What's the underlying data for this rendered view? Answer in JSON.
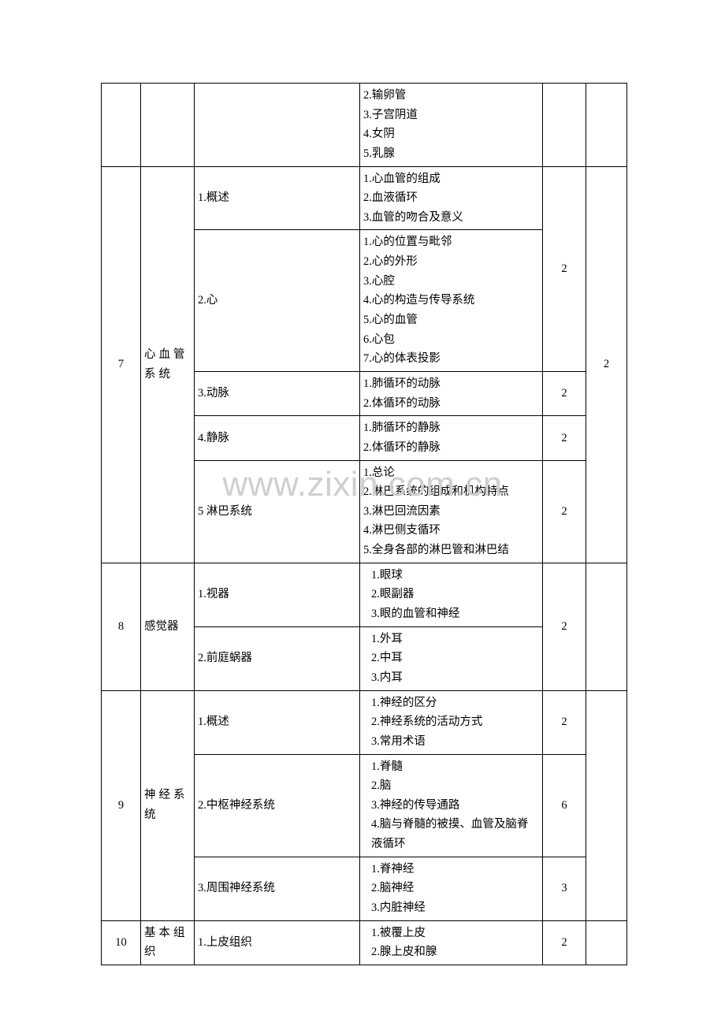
{
  "watermark": "www.zixin.com.cn",
  "rows": {
    "r1_items": "2.输卵管\n3.子宫阴道\n4.女阴\n5.乳腺",
    "ch7_num": "7",
    "ch7_title": "心血管系统",
    "ch7_s1": "1.概述",
    "ch7_s1_items": "1.心血管的组成\n2.血液循环\n3.血管的吻合及意义",
    "ch7_s2": "2.心",
    "ch7_s2_items": "1.心的位置与毗邻\n2.心的外形\n3.心腔\n4.心的构造与传导系统\n5.心的血管\n6.心包\n7.心的体表投影",
    "ch7_h1a": "2",
    "ch7_s3": "3.动脉",
    "ch7_s3_items": "1.肺循环的动脉\n2.体循环的动脉",
    "ch7_h1b": "2",
    "ch7_h2": "2",
    "ch7_s4": "4.静脉",
    "ch7_s4_items": "1.肺循环的静脉\n2.体循环的静脉",
    "ch7_h1c": "2",
    "ch7_s5": "5 淋巴系统",
    "ch7_s5_items": "1.总论\n2.淋巴系统的组成和机构特点\n3.淋巴回流因素\n4.淋巴侧支循环\n5.全身各部的淋巴管和淋巴结",
    "ch7_h1d": "2",
    "ch8_num": "8",
    "ch8_title": "感觉器",
    "ch8_s1": "1.视器",
    "ch8_s1_items": "1.眼球\n2.眼副器\n3.眼的血管和神经",
    "ch8_h1": "2",
    "ch8_s2": "2.前庭蜗器",
    "ch8_s2_items": "1.外耳\n2.中耳\n3.内耳",
    "ch9_num": "9",
    "ch9_title": "神经系统",
    "ch9_s1": "1.概述",
    "ch9_s1_items": "1.神经的区分\n2.神经系统的活动方式\n3.常用术语",
    "ch9_h1a": "2",
    "ch9_s2": "2.中枢神经系统",
    "ch9_s2_items": "1.脊髓\n2.脑\n3.神经的传导通路\n4.脑与脊髓的被摸、血管及脑脊液循环",
    "ch9_h1b": "6",
    "ch9_s3": "3.周围神经系统",
    "ch9_s3_items": "1.脊神经\n2.脑神经\n3.内脏神经",
    "ch9_h1c": "3",
    "ch10_num": "10",
    "ch10_title": "基本组织",
    "ch10_s1": "1.上皮组织",
    "ch10_s1_items": "1.被覆上皮\n2.腺上皮和腺",
    "ch10_h1": "2"
  }
}
